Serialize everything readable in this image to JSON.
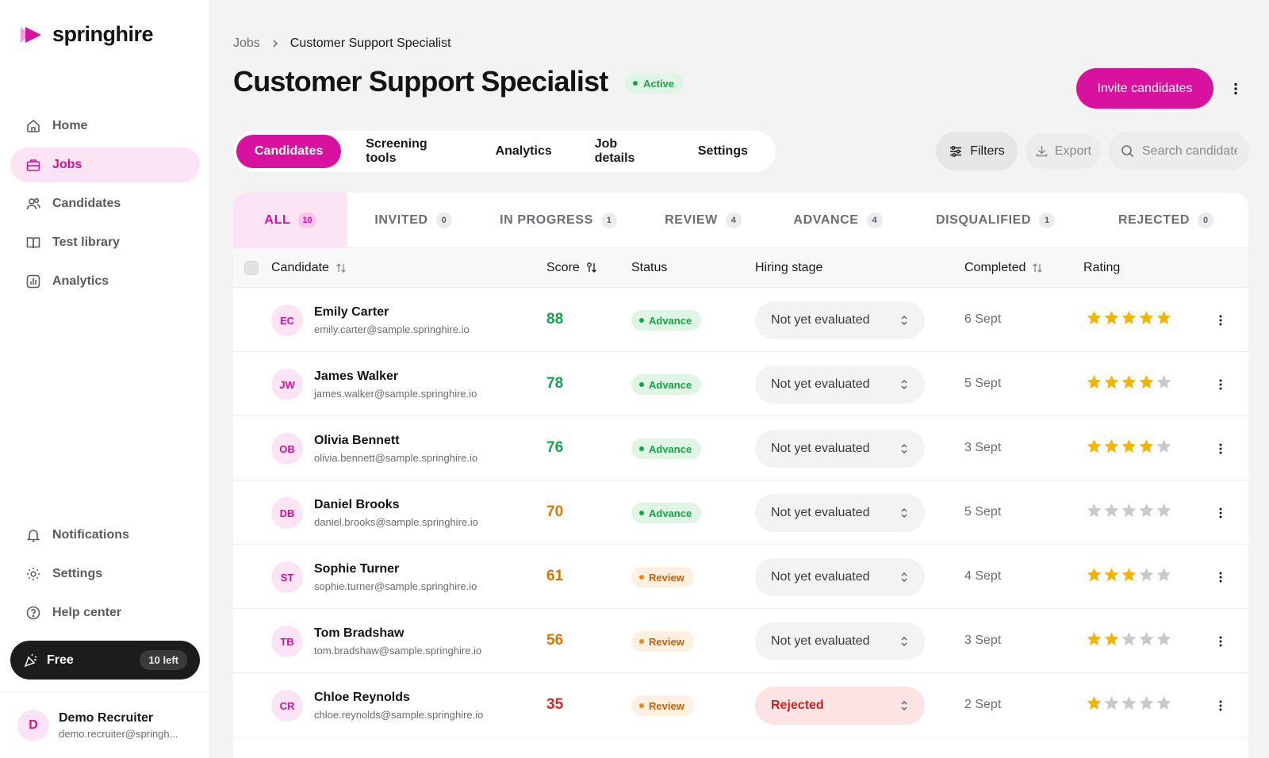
{
  "app": {
    "name": "springhire",
    "brand_color": "#d8129e"
  },
  "sidebar": {
    "nav": [
      {
        "label": "Home",
        "icon": "home-icon",
        "active": false
      },
      {
        "label": "Jobs",
        "icon": "briefcase-icon",
        "active": true
      },
      {
        "label": "Candidates",
        "icon": "users-icon",
        "active": false
      },
      {
        "label": "Test library",
        "icon": "book-icon",
        "active": false
      },
      {
        "label": "Analytics",
        "icon": "bar-chart-icon",
        "active": false
      }
    ],
    "bottom": [
      {
        "label": "Notifications",
        "icon": "bell-icon"
      },
      {
        "label": "Settings",
        "icon": "gear-icon"
      },
      {
        "label": "Help center",
        "icon": "help-icon"
      }
    ],
    "plan": {
      "label": "Free",
      "remaining": "10 left"
    },
    "user": {
      "initial": "D",
      "name": "Demo Recruiter",
      "email": "demo.recruiter@springh..."
    }
  },
  "breadcrumb": {
    "root": "Jobs",
    "current": "Customer Support Specialist"
  },
  "job": {
    "title": "Customer Support Specialist",
    "status": "Active"
  },
  "actions": {
    "invite": "Invite candidates",
    "filters": "Filters",
    "export": "Export",
    "search_placeholder": "Search candidates"
  },
  "tabs": [
    "Candidates",
    "Screening tools",
    "Analytics",
    "Job details",
    "Settings"
  ],
  "subtabs": [
    {
      "label": "ALL",
      "count": "10"
    },
    {
      "label": "INVITED",
      "count": "0"
    },
    {
      "label": "IN PROGRESS",
      "count": "1"
    },
    {
      "label": "REVIEW",
      "count": "4"
    },
    {
      "label": "ADVANCE",
      "count": "4"
    },
    {
      "label": "DISQUALIFIED",
      "count": "1"
    },
    {
      "label": "REJECTED",
      "count": "0"
    }
  ],
  "columns": {
    "candidate": "Candidate",
    "score": "Score",
    "status": "Status",
    "stage": "Hiring stage",
    "completed": "Completed",
    "rating": "Rating"
  },
  "colors": {
    "score_high": "#16a34a",
    "score_mid": "#d97706",
    "score_low": "#dc2626",
    "star_on": "#f5b400",
    "star_off": "#c9c9cd"
  },
  "rows": [
    {
      "initials": "EC",
      "name": "Emily Carter",
      "email": "emily.carter@sample.springhire.io",
      "score": "88",
      "score_level": "high",
      "status": "Advance",
      "stage": "Not yet evaluated",
      "completed": "6 Sept",
      "rating": 5
    },
    {
      "initials": "JW",
      "name": "James Walker",
      "email": "james.walker@sample.springhire.io",
      "score": "78",
      "score_level": "high",
      "status": "Advance",
      "stage": "Not yet evaluated",
      "completed": "5 Sept",
      "rating": 4
    },
    {
      "initials": "OB",
      "name": "Olivia Bennett",
      "email": "olivia.bennett@sample.springhire.io",
      "score": "76",
      "score_level": "high",
      "status": "Advance",
      "stage": "Not yet evaluated",
      "completed": "3 Sept",
      "rating": 4
    },
    {
      "initials": "DB",
      "name": "Daniel Brooks",
      "email": "daniel.brooks@sample.springhire.io",
      "score": "70",
      "score_level": "mid",
      "status": "Advance",
      "stage": "Not yet evaluated",
      "completed": "5 Sept",
      "rating": 0
    },
    {
      "initials": "ST",
      "name": "Sophie Turner",
      "email": "sophie.turner@sample.springhire.io",
      "score": "61",
      "score_level": "mid",
      "status": "Review",
      "stage": "Not yet evaluated",
      "completed": "4 Sept",
      "rating": 3
    },
    {
      "initials": "TB",
      "name": "Tom Bradshaw",
      "email": "tom.bradshaw@sample.springhire.io",
      "score": "56",
      "score_level": "mid",
      "status": "Review",
      "stage": "Not yet evaluated",
      "completed": "3 Sept",
      "rating": 2
    },
    {
      "initials": "CR",
      "name": "Chloe Reynolds",
      "email": "chloe.reynolds@sample.springhire.io",
      "score": "35",
      "score_level": "low",
      "status": "Review",
      "stage": "Rejected",
      "completed": "2 Sept",
      "rating": 1
    }
  ]
}
